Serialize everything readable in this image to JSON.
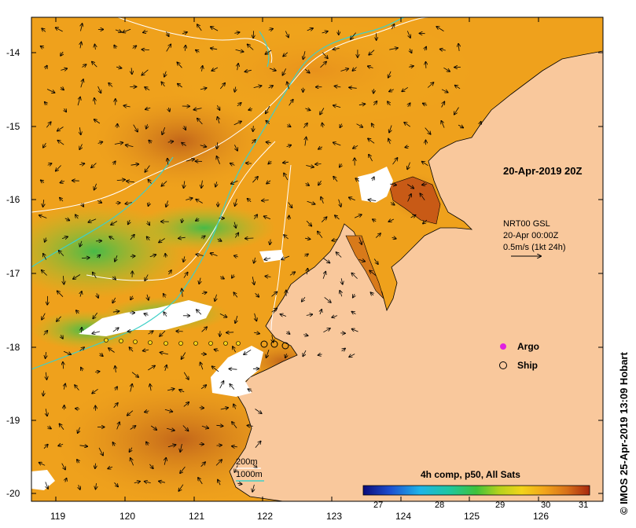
{
  "map": {
    "date_title": "20-Apr-2019 20Z",
    "current_source": "NRT00 GSL",
    "current_time": "20-Apr 00:00Z",
    "arrow_scale": "0.5m/s (1kt 24h)",
    "legend_argo": "Argo",
    "legend_ship": "Ship",
    "contour_200": "200m",
    "contour_1000": "1000m",
    "colorbar_title": "4h comp, p50, All Sats",
    "colorbar_ticks": [
      "27",
      "28",
      "29",
      "30",
      "31"
    ],
    "credit": "© IMOS 25-Apr-2019 13:09 Hobart",
    "x_ticks": [
      "119",
      "120",
      "121",
      "122",
      "123",
      "124",
      "125",
      "126"
    ],
    "y_ticks": [
      "-14",
      "-15",
      "-16",
      "-17",
      "-18",
      "-19",
      "-20"
    ],
    "colors": {
      "land": "#f9c89c",
      "sst_warm": "#d88a1a",
      "sst_mid": "#f2b21c",
      "sst_cool": "#5fbf3a",
      "cloud": "#ffffff",
      "contour_200": "#ffffff",
      "contour_1000": "#3fd0c8",
      "argo": "#e020e0"
    }
  }
}
